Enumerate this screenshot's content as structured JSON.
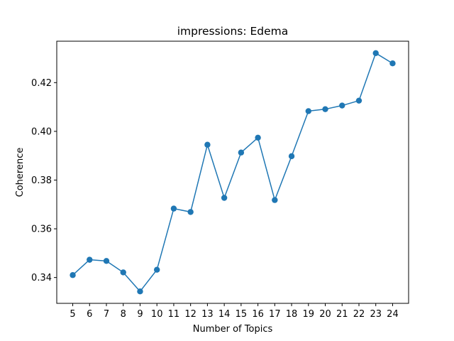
{
  "chart_data": {
    "type": "line",
    "title": "impressions: Edema",
    "xlabel": "Number of Topics",
    "ylabel": "Coherence",
    "x": [
      5,
      6,
      7,
      8,
      9,
      10,
      11,
      12,
      13,
      14,
      15,
      16,
      17,
      18,
      19,
      20,
      21,
      22,
      23,
      24
    ],
    "series": [
      {
        "values": [
          0.341,
          0.3473,
          0.3468,
          0.3421,
          0.3343,
          0.3432,
          0.3683,
          0.3669,
          0.3945,
          0.3727,
          0.3913,
          0.3974,
          0.3718,
          0.3898,
          0.4083,
          0.4091,
          0.4106,
          0.4126,
          0.4321,
          0.4279
        ],
        "color": "#1f77b4",
        "marker": "circle"
      }
    ],
    "yticks": [
      "0.34",
      "0.36",
      "0.38",
      "0.40",
      "0.42"
    ],
    "xticks": [
      "5",
      "6",
      "7",
      "8",
      "9",
      "10",
      "11",
      "12",
      "13",
      "14",
      "15",
      "16",
      "17",
      "18",
      "19",
      "20",
      "21",
      "22",
      "23",
      "24"
    ],
    "xlim": [
      4.05,
      24.95
    ],
    "ylim": [
      0.3294,
      0.437
    ],
    "grid": false,
    "legend": "none"
  }
}
